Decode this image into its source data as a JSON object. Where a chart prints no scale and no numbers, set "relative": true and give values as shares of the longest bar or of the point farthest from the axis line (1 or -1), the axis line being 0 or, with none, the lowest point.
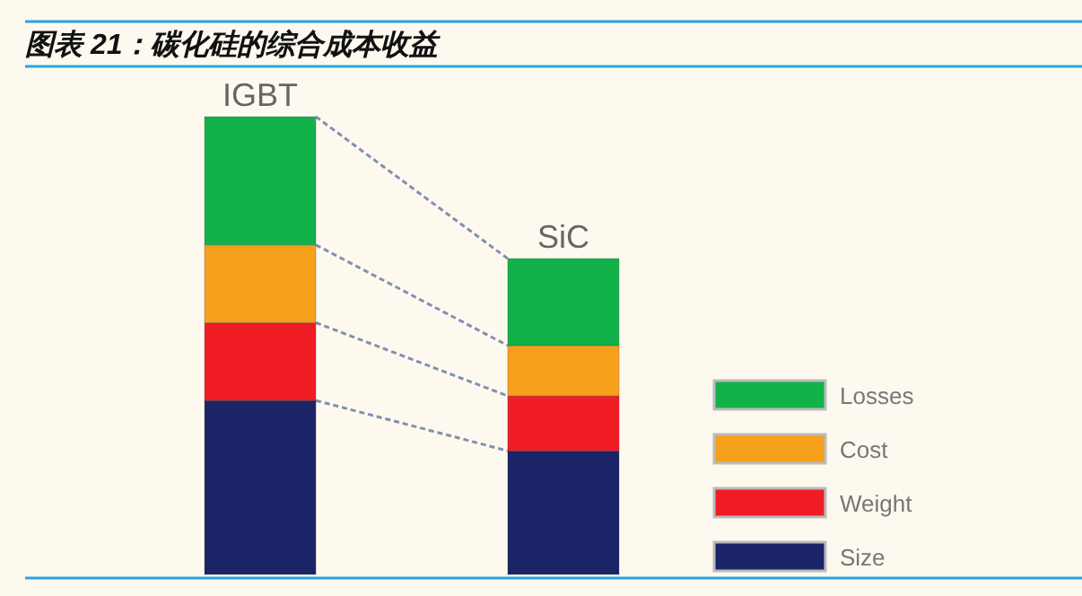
{
  "chart_data": {
    "type": "bar",
    "title": "图表 21：碳化硅的综合成本收益",
    "categories": [
      "IGBT",
      "SiC"
    ],
    "stacked": true,
    "relative": true,
    "legend": "right",
    "series": [
      {
        "name": "Size",
        "color": "#1a2466",
        "values": [
          0.38,
          0.27
        ]
      },
      {
        "name": "Weight",
        "color": "#f01c24",
        "values": [
          0.17,
          0.12
        ]
      },
      {
        "name": "Cost",
        "color": "#f7a01c",
        "values": [
          0.17,
          0.11
        ]
      },
      {
        "name": "Losses",
        "color": "#12b24a",
        "values": [
          0.28,
          0.19
        ]
      }
    ]
  }
}
